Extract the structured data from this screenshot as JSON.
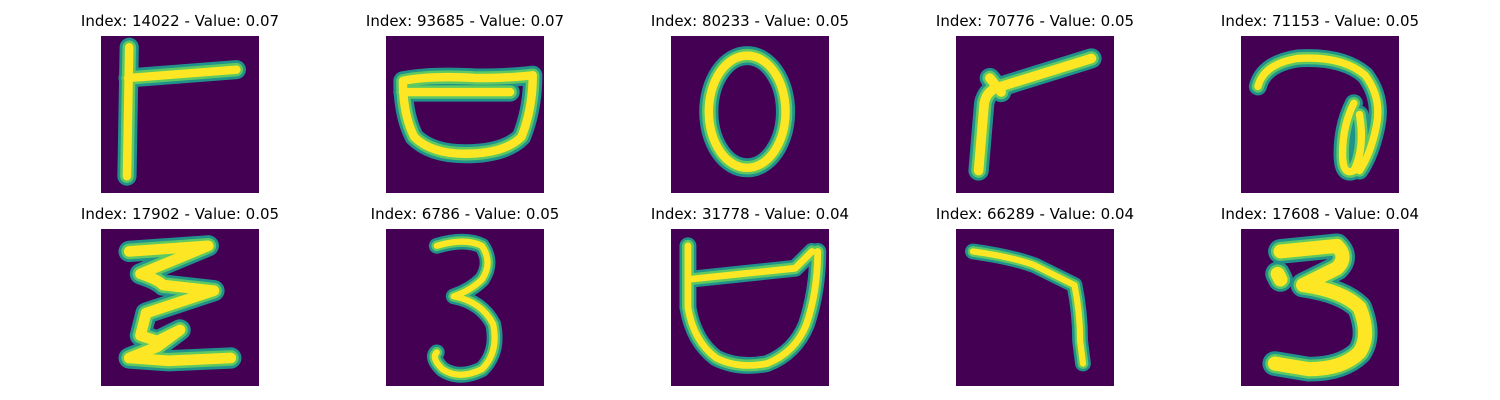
{
  "colors": {
    "background": "#440154",
    "stroke_outer": "#21918c",
    "stroke_mid": "#5ec962",
    "stroke_core": "#fde725"
  },
  "panels": [
    {
      "title": "Index: 14022 - Value: 0.07",
      "glyph": "rotated-F"
    },
    {
      "title": "Index: 93685 - Value: 0.07",
      "glyph": "cup"
    },
    {
      "title": "Index: 80233 - Value: 0.05",
      "glyph": "0"
    },
    {
      "title": "Index: 70776 - Value: 0.05",
      "glyph": "angle"
    },
    {
      "title": "Index: 71153 - Value: 0.05",
      "glyph": "7"
    },
    {
      "title": "Index: 17902 - Value: 0.05",
      "glyph": "E"
    },
    {
      "title": "Index: 6786 - Value: 0.05",
      "glyph": "3"
    },
    {
      "title": "Index: 31778 - Value: 0.04",
      "glyph": "cup-open"
    },
    {
      "title": "Index: 66289 - Value: 0.04",
      "glyph": "7"
    },
    {
      "title": "Index: 17608 - Value: 0.04",
      "glyph": "3"
    }
  ]
}
